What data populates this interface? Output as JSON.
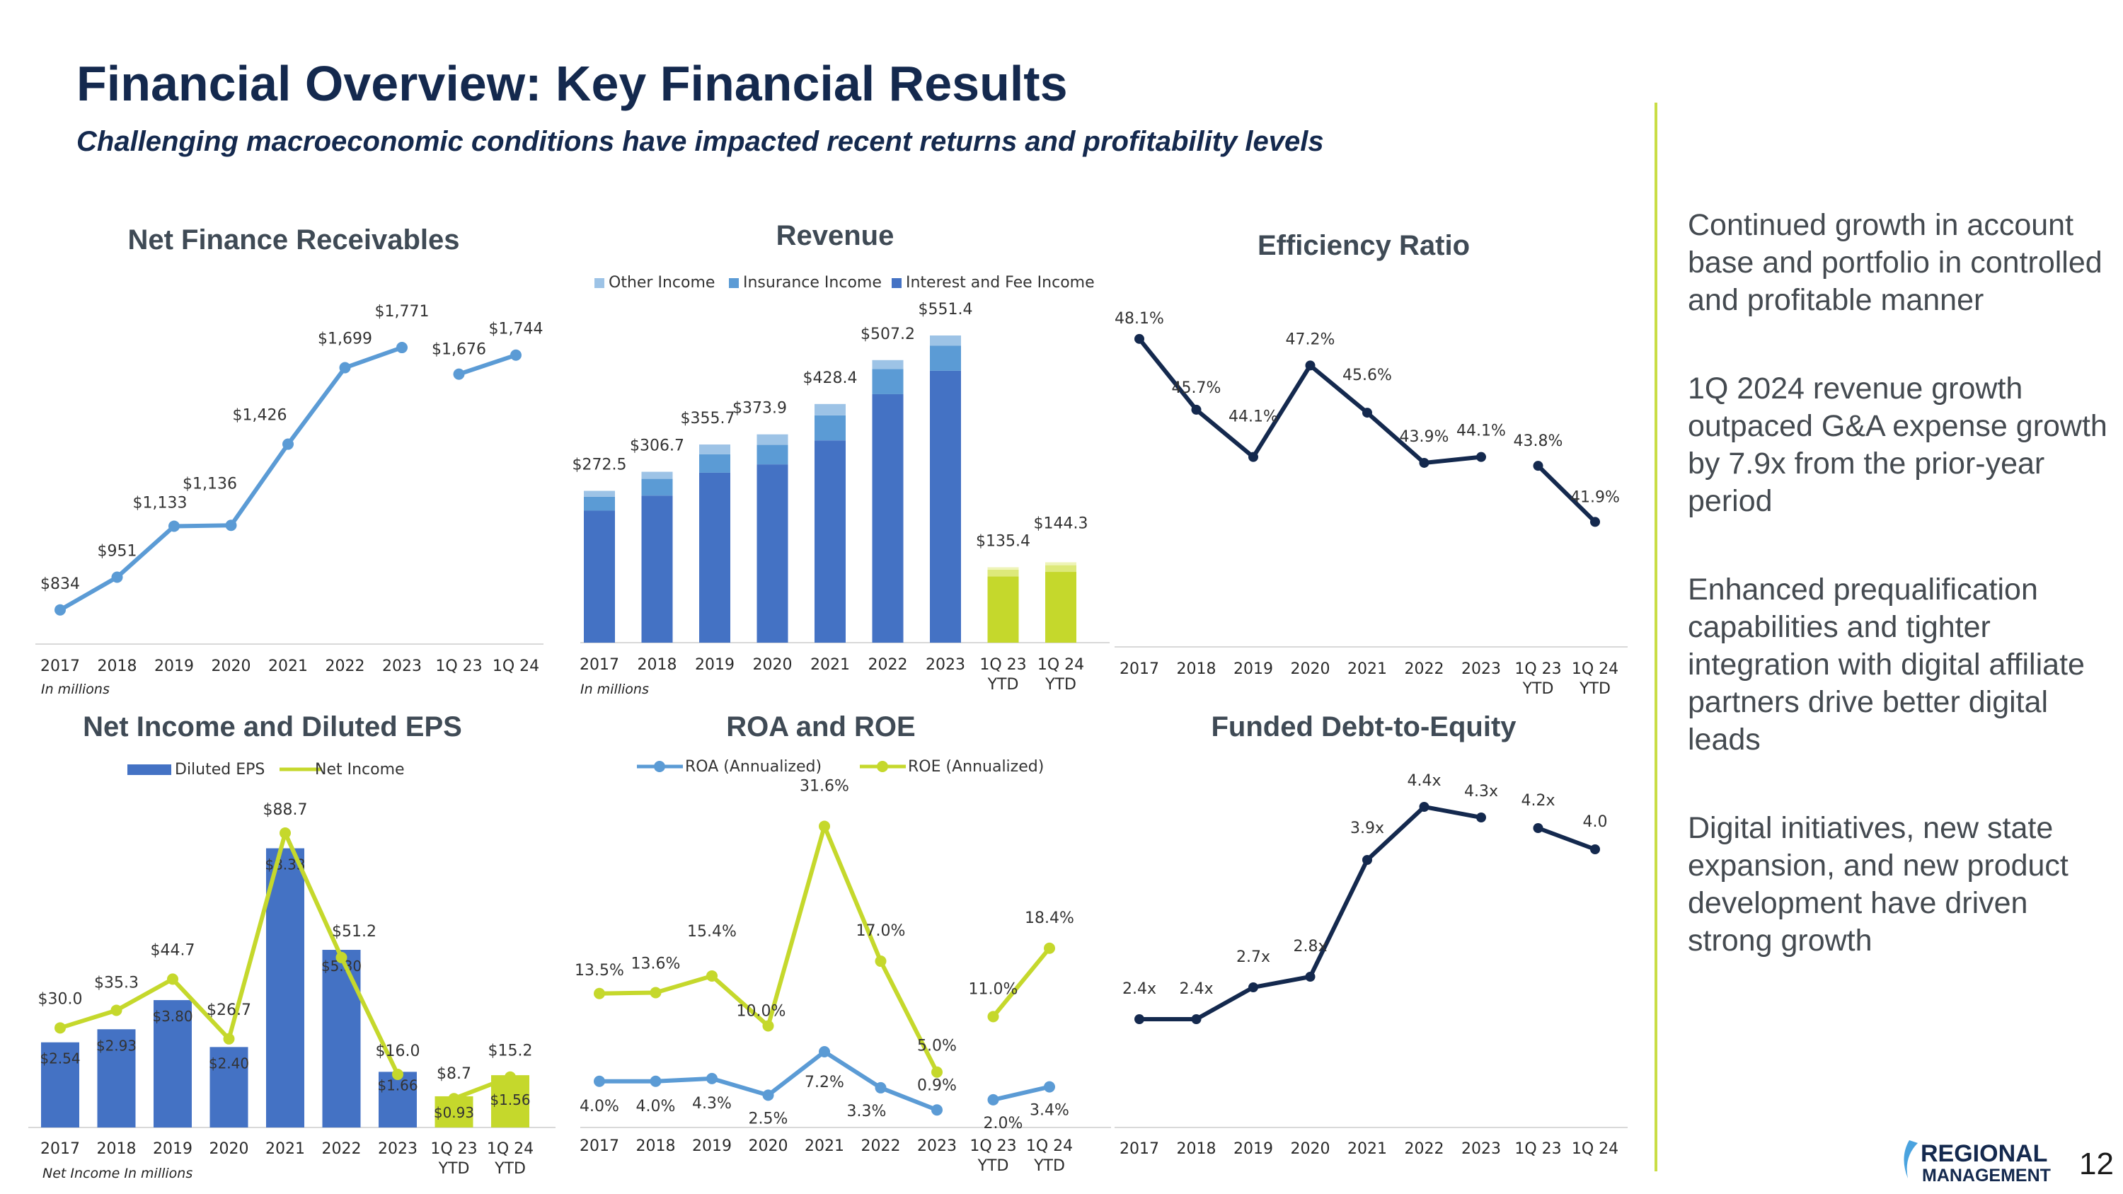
{
  "header": {
    "title": "Financial Overview: Key Financial Results",
    "subtitle": "Challenging macroeconomic conditions have impacted recent returns and profitability levels"
  },
  "bullets": [
    "Continued growth in account base and portfolio in controlled and profitable manner",
    "1Q 2024 revenue growth outpaced G&A expense growth by 7.9x from the prior-year period",
    "Enhanced prequalification capabilities and tighter integration with digital affiliate partners drive better digital leads",
    "Digital initiatives, new state expansion, and new product development have driven strong growth"
  ],
  "footer": {
    "logo_text_top": "REGIONAL",
    "logo_text_bottom": "MANAGEMENT",
    "page_number": "12"
  },
  "colors": {
    "navy": "#14294e",
    "blue": "#4472c4",
    "mid_blue": "#5b9bd5",
    "light_blue": "#9dc3e6",
    "lime": "#c5d82c",
    "lime_light": "#dde97a",
    "lime_lighter": "#eef4b8",
    "accent_line": "#c9dd45"
  },
  "chart_data": [
    {
      "id": "nfr",
      "type": "line",
      "title": "Net Finance Receivables",
      "note": "In millions",
      "categories": [
        "2017",
        "2018",
        "2019",
        "2020",
        "2021",
        "2022",
        "2023",
        "1Q 23",
        "1Q 24"
      ],
      "series": [
        {
          "name": "Net Finance Receivables",
          "segments": [
            [
              0,
              6
            ],
            [
              7,
              8
            ]
          ],
          "values": [
            834,
            951,
            1133,
            1136,
            1426,
            1699,
            1771,
            1676,
            1744
          ],
          "labels": [
            "$834",
            "$951",
            "$1,133",
            "$1,136",
            "$1,426",
            "$1,699",
            "$1,771",
            "$1,676",
            "$1,744"
          ]
        }
      ],
      "ylim": [
        750,
        1900
      ]
    },
    {
      "id": "rev",
      "type": "bar",
      "stacked": true,
      "title": "Revenue",
      "note": "In millions",
      "categories": [
        "2017",
        "2018",
        "2019",
        "2020",
        "2021",
        "2022",
        "2023",
        "1Q 23 YTD",
        "1Q 24 YTD"
      ],
      "legend": [
        "Other Income",
        "Insurance Income",
        "Interest and Fee Income"
      ],
      "series": [
        {
          "name": "Interest and Fee Income",
          "values": [
            237,
            264,
            305,
            320,
            363,
            446,
            488,
            119,
            127
          ]
        },
        {
          "name": "Insurance Income",
          "values": [
            25,
            30,
            33,
            35,
            45,
            45,
            45,
            12,
            12
          ]
        },
        {
          "name": "Other Income",
          "values": [
            10.5,
            12.7,
            17.7,
            18.9,
            20.4,
            16.2,
            18.4,
            4.4,
            5.3
          ]
        }
      ],
      "totals": [
        272.5,
        306.7,
        355.7,
        373.9,
        428.4,
        507.2,
        551.4,
        135.4,
        144.3
      ],
      "total_labels": [
        "$272.5",
        "$306.7",
        "$355.7",
        "$373.9",
        "$428.4",
        "$507.2",
        "$551.4",
        "$135.4",
        "$144.3"
      ],
      "ylim": [
        0,
        620
      ]
    },
    {
      "id": "eff",
      "type": "line",
      "title": "Efficiency Ratio",
      "categories": [
        "2017",
        "2018",
        "2019",
        "2020",
        "2021",
        "2022",
        "2023",
        "1Q 23 YTD",
        "1Q 24 YTD"
      ],
      "series": [
        {
          "name": "Efficiency Ratio",
          "segments": [
            [
              0,
              6
            ],
            [
              7,
              8
            ]
          ],
          "values": [
            48.1,
            45.7,
            44.1,
            47.2,
            45.6,
            43.9,
            44.1,
            43.8,
            41.9
          ],
          "labels": [
            "48.1%",
            "45.7%",
            "44.1%",
            "47.2%",
            "45.6%",
            "43.9%",
            "44.1%",
            "43.8%",
            "41.9%"
          ]
        }
      ],
      "ylim": [
        38,
        48.6
      ]
    },
    {
      "id": "ni",
      "type": "bar+line",
      "title": "Net Income and Diluted EPS",
      "note": "Net Income In millions",
      "categories": [
        "2017",
        "2018",
        "2019",
        "2020",
        "2021",
        "2022",
        "2023",
        "1Q 23 YTD",
        "1Q 24 YTD"
      ],
      "legend": [
        "Diluted EPS",
        "Net Income"
      ],
      "eps": [
        2.54,
        2.93,
        3.8,
        2.4,
        8.33,
        5.3,
        1.66,
        0.93,
        1.56
      ],
      "eps_labels": [
        "$2.54",
        "$2.93",
        "$3.80",
        "$2.40",
        "$8.33",
        "$5.30",
        "$1.66",
        "$0.93",
        "$1.56"
      ],
      "net_income": [
        30.0,
        35.3,
        44.7,
        26.7,
        88.7,
        51.2,
        16.0,
        8.7,
        15.2
      ],
      "ni_labels": [
        "$30.0",
        "$35.3",
        "$44.7",
        "$26.7",
        "$88.7",
        "$51.2",
        "$16.0",
        "$8.7",
        "$15.2"
      ],
      "eps_ylim": [
        0,
        10.2
      ],
      "ni_ylim": [
        0,
        103
      ]
    },
    {
      "id": "roa",
      "type": "line",
      "title": "ROA and ROE",
      "categories": [
        "2017",
        "2018",
        "2019",
        "2020",
        "2021",
        "2022",
        "2023",
        "1Q 23 YTD",
        "1Q 24 YTD"
      ],
      "legend": [
        "ROA (Annualized)",
        "ROE (Annualized)"
      ],
      "series": [
        {
          "name": "ROA (Annualized)",
          "segments": [
            [
              0,
              6
            ],
            [
              7,
              8
            ]
          ],
          "values": [
            4.0,
            4.0,
            4.3,
            2.5,
            7.2,
            3.3,
            0.9,
            2.0,
            3.4
          ],
          "labels": [
            "4.0%",
            "4.0%",
            "4.3%",
            "2.5%",
            "7.2%",
            "3.3%",
            "0.9%",
            "2.0%",
            "3.4%"
          ]
        },
        {
          "name": "ROE (Annualized)",
          "segments": [
            [
              0,
              6
            ],
            [
              7,
              8
            ]
          ],
          "values": [
            13.5,
            13.6,
            15.4,
            10.0,
            31.6,
            17.0,
            5.0,
            11.0,
            18.4
          ],
          "labels": [
            "13.5%",
            "13.6%",
            "15.4%",
            "10.0%",
            "31.6%",
            "17.0%",
            "5.0%",
            "11.0%",
            "18.4%"
          ]
        }
      ],
      "ylim": [
        0,
        36
      ]
    },
    {
      "id": "fde",
      "type": "line",
      "title": "Funded Debt-to-Equity",
      "categories": [
        "2017",
        "2018",
        "2019",
        "2020",
        "2021",
        "2022",
        "2023",
        "1Q 23",
        "1Q 24"
      ],
      "series": [
        {
          "name": "Funded Debt-to-Equity",
          "segments": [
            [
              0,
              6
            ],
            [
              7,
              8
            ]
          ],
          "values": [
            2.4,
            2.4,
            2.7,
            2.8,
            3.9,
            4.4,
            4.3,
            4.2,
            4.0
          ],
          "labels": [
            "2.4x",
            "2.4x",
            "2.7x",
            "2.8x",
            "3.9x",
            "4.4x",
            "4.3x",
            "4.2x",
            "4.0"
          ]
        }
      ],
      "ylim": [
        0,
        5
      ]
    }
  ]
}
